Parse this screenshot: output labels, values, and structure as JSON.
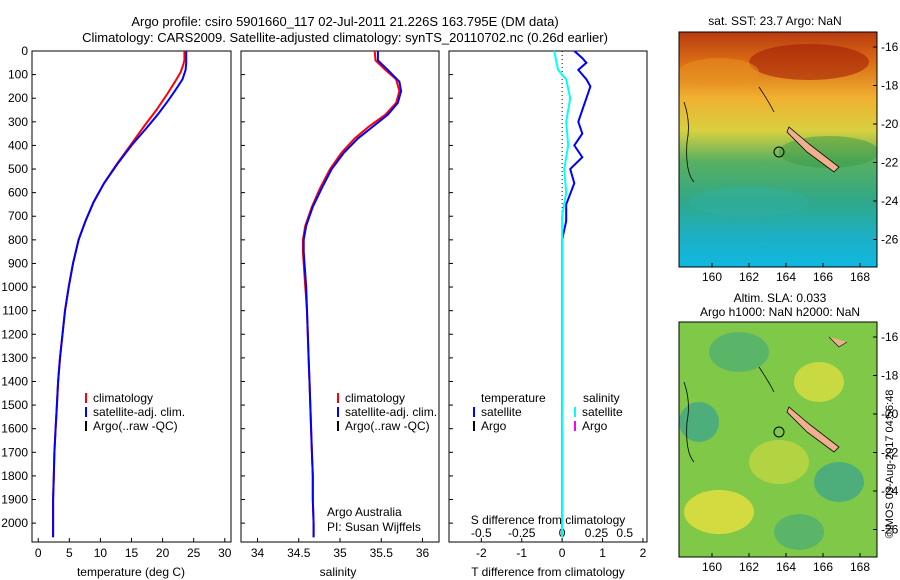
{
  "titles": {
    "line1": "Argo profile: csiro 5901660_117 02-Jul-2011 21.226S 163.795E (DM data)",
    "line2": "Climatology: CARS2009. Satellite-adjusted climatology: synTS_20110702.nc (0.26d earlier)"
  },
  "colors": {
    "climatology": "#ff0000",
    "satellite": "#0000ff",
    "argo": "#000000",
    "sal_satellite": "#00ffff",
    "sal_argo": "#ff00ff"
  },
  "chart_data": [
    {
      "type": "line",
      "id": "temperature",
      "xlabel": "temperature (deg C)",
      "xlim": [
        -1,
        31
      ],
      "ylim": [
        2080,
        0
      ],
      "xticks": [
        "0",
        "5",
        "10",
        "15",
        "20",
        "25",
        "30"
      ],
      "yticks": [
        "0",
        "100",
        "200",
        "300",
        "400",
        "500",
        "600",
        "700",
        "800",
        "900",
        "1000",
        "1100",
        "1200",
        "1300",
        "1400",
        "1500",
        "1600",
        "1700",
        "1800",
        "1900",
        "2000"
      ],
      "legend": [
        "climatology",
        "satellite-adj. clim.",
        "Argo(..raw -QC)"
      ],
      "series": [
        {
          "name": "climatology",
          "color": "#ff0000",
          "points": [
            [
              23.5,
              0
            ],
            [
              23.5,
              40
            ],
            [
              23.3,
              60
            ],
            [
              22.9,
              90
            ],
            [
              22.0,
              130
            ],
            [
              20.8,
              180
            ],
            [
              19.0,
              250
            ],
            [
              17.0,
              320
            ],
            [
              14.8,
              400
            ],
            [
              12.6,
              480
            ],
            [
              10.6,
              560
            ],
            [
              8.9,
              640
            ],
            [
              7.6,
              720
            ],
            [
              6.5,
              800
            ],
            [
              5.6,
              900
            ],
            [
              4.9,
              1000
            ],
            [
              4.3,
              1100
            ],
            [
              3.9,
              1200
            ],
            [
              3.5,
              1300
            ],
            [
              3.2,
              1400
            ],
            [
              3.0,
              1500
            ],
            [
              2.8,
              1600
            ],
            [
              2.6,
              1700
            ],
            [
              2.5,
              1800
            ],
            [
              2.4,
              1900
            ],
            [
              2.4,
              2000
            ],
            [
              2.4,
              2060
            ]
          ]
        },
        {
          "name": "satellite-adj. clim.",
          "color": "#0000ff",
          "points": [
            [
              23.8,
              0
            ],
            [
              23.8,
              50
            ],
            [
              23.7,
              80
            ],
            [
              23.2,
              120
            ],
            [
              22.2,
              160
            ],
            [
              20.9,
              210
            ],
            [
              19.2,
              270
            ],
            [
              17.3,
              330
            ],
            [
              15.0,
              400
            ],
            [
              12.7,
              480
            ],
            [
              10.6,
              560
            ],
            [
              8.9,
              640
            ],
            [
              7.6,
              720
            ],
            [
              6.5,
              800
            ],
            [
              5.6,
              900
            ],
            [
              4.9,
              1000
            ],
            [
              4.3,
              1100
            ],
            [
              3.9,
              1200
            ],
            [
              3.5,
              1300
            ],
            [
              3.2,
              1400
            ],
            [
              3.0,
              1500
            ],
            [
              2.8,
              1600
            ],
            [
              2.6,
              1700
            ],
            [
              2.5,
              1800
            ],
            [
              2.4,
              1900
            ],
            [
              2.4,
              2000
            ],
            [
              2.4,
              2060
            ]
          ]
        }
      ]
    },
    {
      "type": "line",
      "id": "salinity",
      "xlabel": "salinity",
      "xlim": [
        33.8,
        36.2
      ],
      "ylim": [
        2080,
        0
      ],
      "xticks": [
        "34",
        "34.5",
        "35",
        "35.5",
        "36"
      ],
      "legend": [
        "climatology",
        "satellite-adj. clim.",
        "Argo(..raw -QC)"
      ],
      "annotation": [
        "Argo Australia",
        "PI: Susan Wijffels"
      ],
      "series": [
        {
          "name": "climatology",
          "color": "#ff0000",
          "points": [
            [
              35.42,
              0
            ],
            [
              35.43,
              40
            ],
            [
              35.55,
              80
            ],
            [
              35.68,
              120
            ],
            [
              35.72,
              170
            ],
            [
              35.68,
              220
            ],
            [
              35.55,
              270
            ],
            [
              35.35,
              320
            ],
            [
              35.18,
              370
            ],
            [
              35.02,
              430
            ],
            [
              34.88,
              500
            ],
            [
              34.76,
              580
            ],
            [
              34.66,
              660
            ],
            [
              34.58,
              740
            ],
            [
              34.55,
              800
            ],
            [
              34.55,
              850
            ],
            [
              34.56,
              900
            ],
            [
              34.58,
              1000
            ],
            [
              34.6,
              1100
            ],
            [
              34.61,
              1200
            ],
            [
              34.62,
              1300
            ],
            [
              34.63,
              1400
            ],
            [
              34.64,
              1500
            ],
            [
              34.65,
              1600
            ],
            [
              34.66,
              1700
            ],
            [
              34.67,
              1800
            ],
            [
              34.67,
              1900
            ],
            [
              34.68,
              2000
            ],
            [
              34.68,
              2060
            ]
          ]
        },
        {
          "name": "satellite-adj. clim.",
          "color": "#0000ff",
          "points": [
            [
              35.46,
              0
            ],
            [
              35.46,
              40
            ],
            [
              35.58,
              80
            ],
            [
              35.72,
              130
            ],
            [
              35.74,
              170
            ],
            [
              35.7,
              220
            ],
            [
              35.58,
              270
            ],
            [
              35.4,
              320
            ],
            [
              35.22,
              370
            ],
            [
              35.05,
              430
            ],
            [
              34.9,
              500
            ],
            [
              34.78,
              580
            ],
            [
              34.67,
              660
            ],
            [
              34.59,
              740
            ],
            [
              34.56,
              800
            ],
            [
              34.56,
              850
            ],
            [
              34.57,
              900
            ],
            [
              34.59,
              1000
            ],
            [
              34.6,
              1100
            ],
            [
              34.61,
              1200
            ],
            [
              34.62,
              1300
            ],
            [
              34.63,
              1400
            ],
            [
              34.64,
              1500
            ],
            [
              34.65,
              1600
            ],
            [
              34.66,
              1700
            ],
            [
              34.67,
              1800
            ],
            [
              34.67,
              1900
            ],
            [
              34.68,
              2000
            ],
            [
              34.68,
              2060
            ]
          ]
        }
      ]
    },
    {
      "type": "line",
      "id": "difference",
      "xlabel": "T difference from climatology",
      "xlabel_top": "S difference from climatology",
      "xlim": [
        -2.8,
        2.1
      ],
      "ylim": [
        2080,
        0
      ],
      "xticks": [
        "-2",
        "-1",
        "0",
        "1",
        "2"
      ],
      "sticks": [
        "-0.5",
        "-0.25",
        "0",
        "0.25",
        "0.5"
      ],
      "legend_t": [
        "temperature",
        "satellite",
        "Argo"
      ],
      "legend_s": [
        "salinity",
        "satellite",
        "Argo"
      ],
      "series": [
        {
          "name": "satellite",
          "color": "#0000ff",
          "points": [
            [
              0.3,
              0
            ],
            [
              0.5,
              30
            ],
            [
              0.6,
              50
            ],
            [
              0.4,
              80
            ],
            [
              0.6,
              120
            ],
            [
              0.7,
              150
            ],
            [
              0.6,
              200
            ],
            [
              0.5,
              250
            ],
            [
              0.4,
              300
            ],
            [
              0.5,
              350
            ],
            [
              0.3,
              400
            ],
            [
              0.5,
              450
            ],
            [
              0.2,
              500
            ],
            [
              0.3,
              560
            ],
            [
              0.1,
              650
            ],
            [
              0.1,
              720
            ],
            [
              0.0,
              800
            ],
            [
              0.0,
              900
            ],
            [
              0.0,
              1000
            ],
            [
              0.0,
              1500
            ],
            [
              0.0,
              2060
            ]
          ]
        },
        {
          "name": "salinity satellite",
          "color": "#00ffff",
          "points": [
            [
              -0.2,
              0
            ],
            [
              -0.15,
              40
            ],
            [
              -0.1,
              80
            ],
            [
              0.1,
              120
            ],
            [
              0.2,
              200
            ],
            [
              0.1,
              300
            ],
            [
              0.15,
              400
            ],
            [
              0.05,
              500
            ],
            [
              0.1,
              600
            ],
            [
              0.0,
              700
            ],
            [
              0.0,
              900
            ],
            [
              0.0,
              1200
            ],
            [
              0.0,
              2060
            ]
          ]
        }
      ]
    }
  ],
  "maps": {
    "sst": {
      "title": "sat. SST: 23.7  Argo: NaN",
      "xticks": [
        "160",
        "162",
        "164",
        "166",
        "168"
      ],
      "yticks": [
        "-16",
        "-18",
        "-20",
        "-22",
        "-24",
        "-26"
      ]
    },
    "sla": {
      "title1": "Altim. SLA: 0.033",
      "title2": "Argo h1000: NaN h2000: NaN",
      "xticks": [
        "160",
        "162",
        "164",
        "166",
        "168"
      ],
      "yticks": [
        "-16",
        "-18",
        "-20",
        "-22",
        "-24",
        "-26"
      ]
    }
  },
  "credit": "©IMOS 03-Aug-2017 04:56:48"
}
